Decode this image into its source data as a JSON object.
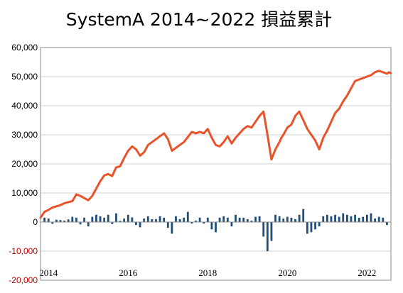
{
  "chart_data": {
    "type": "bar+line",
    "title": "SystemA 2014~2022  損益累計",
    "xlabel": "",
    "ylabel": "",
    "ylim": [
      -20000,
      60000
    ],
    "grid": true,
    "legend": "none",
    "y_ticks": [
      -20000,
      -10000,
      0,
      10000,
      20000,
      30000,
      40000,
      50000,
      60000
    ],
    "y_tick_labels": [
      "-20,000",
      "-10,000",
      "0",
      "10,000",
      "20,000",
      "30,000",
      "40,000",
      "50,000",
      "60,000"
    ],
    "x_range": [
      2013.8,
      2022.6
    ],
    "x_ticks": [
      2014,
      2016,
      2018,
      2020,
      2022
    ],
    "x_tick_labels": [
      "2014",
      "2016",
      "2018",
      "2020",
      "2022"
    ],
    "colors": {
      "line": "#e8532a",
      "bars": "#1f4e79",
      "negative_label": "#c00000",
      "grid": "#d0d0d0"
    },
    "series": [
      {
        "type": "line",
        "x": [
          2013.8,
          2013.9,
          2014.0,
          2014.1,
          2014.3,
          2014.4,
          2014.6,
          2014.7,
          2014.8,
          2015.0,
          2015.1,
          2015.2,
          2015.3,
          2015.4,
          2015.5,
          2015.6,
          2015.7,
          2015.8,
          2015.9,
          2016.0,
          2016.1,
          2016.2,
          2016.3,
          2016.4,
          2016.5,
          2016.6,
          2016.7,
          2016.9,
          2017.0,
          2017.1,
          2017.3,
          2017.4,
          2017.6,
          2017.7,
          2017.8,
          2017.9,
          2018.0,
          2018.1,
          2018.2,
          2018.3,
          2018.4,
          2018.5,
          2018.6,
          2018.7,
          2018.8,
          2018.9,
          2019.0,
          2019.1,
          2019.2,
          2019.3,
          2019.4,
          2019.5,
          2019.6,
          2019.7,
          2019.8,
          2019.85,
          2019.9,
          2020.0,
          2020.1,
          2020.2,
          2020.3,
          2020.4,
          2020.5,
          2020.6,
          2020.7,
          2020.75,
          2020.8,
          2020.9,
          2021.0,
          2021.1,
          2021.2,
          2021.3,
          2021.4,
          2021.5,
          2021.6,
          2021.7,
          2021.8,
          2021.9,
          2022.0,
          2022.1,
          2022.2,
          2022.3,
          2022.4,
          2022.5,
          2022.55,
          2022.6
        ],
        "values": [
          1500,
          3500,
          4200,
          5000,
          5800,
          6500,
          7200,
          9500,
          9000,
          7500,
          9000,
          11500,
          14000,
          16000,
          16500,
          15800,
          18800,
          19200,
          22000,
          24500,
          26000,
          25000,
          22800,
          24000,
          26500,
          27500,
          28500,
          30500,
          28500,
          24500,
          26500,
          27500,
          31000,
          30500,
          31000,
          30500,
          32000,
          29000,
          26500,
          26000,
          27500,
          29500,
          27000,
          29000,
          30500,
          32000,
          33000,
          32500,
          34500,
          36500,
          38000,
          30000,
          21500,
          25000,
          27500,
          29000,
          30000,
          32500,
          33500,
          36500,
          38000,
          35000,
          32000,
          30000,
          28000,
          26500,
          25000,
          29000,
          31500,
          34500,
          37500,
          39000,
          41500,
          43500,
          46000,
          48500,
          49000,
          49500,
          50000,
          50500,
          51500,
          52000,
          51500,
          51000,
          51500,
          51200
        ]
      },
      {
        "type": "bar",
        "x": [
          2013.9,
          2014.0,
          2014.1,
          2014.2,
          2014.3,
          2014.4,
          2014.5,
          2014.6,
          2014.7,
          2014.8,
          2014.9,
          2015.0,
          2015.1,
          2015.2,
          2015.3,
          2015.4,
          2015.5,
          2015.6,
          2015.7,
          2015.8,
          2015.9,
          2016.0,
          2016.1,
          2016.2,
          2016.3,
          2016.4,
          2016.5,
          2016.6,
          2016.7,
          2016.8,
          2016.9,
          2017.0,
          2017.1,
          2017.2,
          2017.3,
          2017.4,
          2017.5,
          2017.6,
          2017.7,
          2017.8,
          2017.9,
          2018.0,
          2018.1,
          2018.2,
          2018.3,
          2018.4,
          2018.5,
          2018.6,
          2018.7,
          2018.8,
          2018.9,
          2019.0,
          2019.1,
          2019.2,
          2019.3,
          2019.4,
          2019.5,
          2019.6,
          2019.7,
          2019.8,
          2019.9,
          2020.0,
          2020.1,
          2020.2,
          2020.3,
          2020.4,
          2020.5,
          2020.6,
          2020.7,
          2020.8,
          2020.9,
          2021.0,
          2021.1,
          2021.2,
          2021.3,
          2021.4,
          2021.5,
          2021.6,
          2021.7,
          2021.8,
          2021.9,
          2022.0,
          2022.1,
          2022.2,
          2022.3,
          2022.4,
          2022.5
        ],
        "values": [
          1500,
          1200,
          -600,
          800,
          700,
          500,
          900,
          1800,
          1500,
          -800,
          1500,
          -1500,
          1800,
          2500,
          2000,
          1500,
          2500,
          -700,
          3000,
          400,
          1200,
          2500,
          1600,
          -1000,
          -1800,
          1200,
          2000,
          1000,
          1000,
          2000,
          1500,
          -2000,
          -4000,
          2000,
          1000,
          1500,
          3500,
          -500,
          500,
          1500,
          -500,
          1500,
          -2500,
          -3500,
          1500,
          2000,
          1500,
          -1500,
          2500,
          1500,
          1500,
          1000,
          500,
          1800,
          2000,
          -5000,
          -10000,
          -6500,
          2500,
          2000,
          1200,
          1800,
          1500,
          1000,
          2500,
          4500,
          -4000,
          -3500,
          -2500,
          -1500,
          2000,
          2500,
          2000,
          2500,
          1800,
          3000,
          2500,
          2000,
          2500,
          1500,
          1800,
          2500,
          3000,
          1200,
          1800,
          1500,
          -1000
        ]
      }
    ]
  }
}
